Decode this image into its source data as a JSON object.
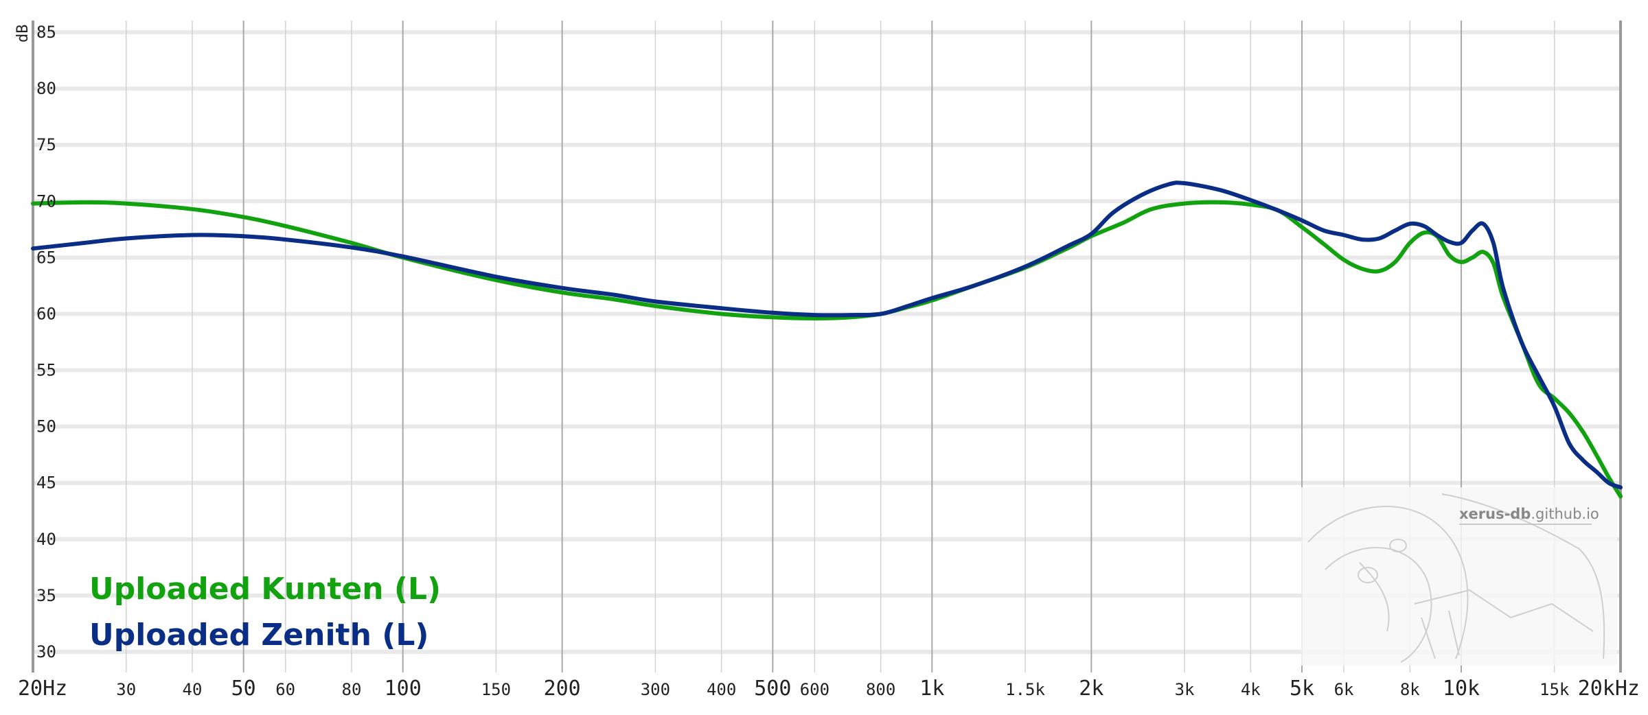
{
  "chart_data": {
    "type": "line",
    "ylabel": "dB",
    "ylim": [
      30,
      85
    ],
    "xlim": [
      20,
      20000
    ],
    "x_scale": "log",
    "y_ticks": [
      {
        "value": 85,
        "label": "85"
      },
      {
        "value": 80,
        "label": "80"
      },
      {
        "value": 75,
        "label": "75"
      },
      {
        "value": 70,
        "label": "70"
      },
      {
        "value": 65,
        "label": "65"
      },
      {
        "value": 60,
        "label": "60"
      },
      {
        "value": 55,
        "label": "55"
      },
      {
        "value": 50,
        "label": "50"
      },
      {
        "value": 45,
        "label": "45"
      },
      {
        "value": 40,
        "label": "40"
      },
      {
        "value": 35,
        "label": "35"
      },
      {
        "value": 30,
        "label": "30"
      }
    ],
    "x_ticks": [
      {
        "value": 20,
        "label": "20Hz",
        "major": true
      },
      {
        "value": 30,
        "label": "30",
        "major": false
      },
      {
        "value": 40,
        "label": "40",
        "major": false
      },
      {
        "value": 50,
        "label": "50",
        "major": true
      },
      {
        "value": 60,
        "label": "60",
        "major": false
      },
      {
        "value": 80,
        "label": "80",
        "major": false
      },
      {
        "value": 100,
        "label": "100",
        "major": true
      },
      {
        "value": 150,
        "label": "150",
        "major": false
      },
      {
        "value": 200,
        "label": "200",
        "major": true
      },
      {
        "value": 300,
        "label": "300",
        "major": false
      },
      {
        "value": 400,
        "label": "400",
        "major": false
      },
      {
        "value": 500,
        "label": "500",
        "major": true
      },
      {
        "value": 600,
        "label": "600",
        "major": false
      },
      {
        "value": 800,
        "label": "800",
        "major": false
      },
      {
        "value": 1000,
        "label": "1k",
        "major": true
      },
      {
        "value": 1500,
        "label": "1.5k",
        "major": false
      },
      {
        "value": 2000,
        "label": "2k",
        "major": true
      },
      {
        "value": 3000,
        "label": "3k",
        "major": false
      },
      {
        "value": 4000,
        "label": "4k",
        "major": false
      },
      {
        "value": 5000,
        "label": "5k",
        "major": true
      },
      {
        "value": 6000,
        "label": "6k",
        "major": false
      },
      {
        "value": 8000,
        "label": "8k",
        "major": false
      },
      {
        "value": 10000,
        "label": "10k",
        "major": true
      },
      {
        "value": 15000,
        "label": "15k",
        "major": false
      },
      {
        "value": 20000,
        "label": "20kHz",
        "major": true
      }
    ],
    "grid": true,
    "legend_position": "bottom-left",
    "series": [
      {
        "name": "Uploaded Kunten (L)",
        "color": "#12a20f",
        "points": [
          [
            20,
            69.8
          ],
          [
            25,
            69.9
          ],
          [
            30,
            69.8
          ],
          [
            40,
            69.3
          ],
          [
            50,
            68.6
          ],
          [
            60,
            67.8
          ],
          [
            80,
            66.3
          ],
          [
            100,
            65.0
          ],
          [
            150,
            63.0
          ],
          [
            200,
            61.9
          ],
          [
            250,
            61.3
          ],
          [
            300,
            60.7
          ],
          [
            400,
            60.0
          ],
          [
            500,
            59.7
          ],
          [
            600,
            59.6
          ],
          [
            700,
            59.7
          ],
          [
            800,
            60.0
          ],
          [
            900,
            60.6
          ],
          [
            1000,
            61.2
          ],
          [
            1200,
            62.5
          ],
          [
            1500,
            64.1
          ],
          [
            1800,
            65.8
          ],
          [
            2000,
            66.9
          ],
          [
            2300,
            68.1
          ],
          [
            2600,
            69.3
          ],
          [
            3000,
            69.8
          ],
          [
            3500,
            69.9
          ],
          [
            4000,
            69.7
          ],
          [
            4500,
            69.2
          ],
          [
            5000,
            67.7
          ],
          [
            5500,
            66.2
          ],
          [
            6000,
            64.8
          ],
          [
            6500,
            64.0
          ],
          [
            7000,
            63.8
          ],
          [
            7500,
            64.6
          ],
          [
            8000,
            66.3
          ],
          [
            8500,
            67.2
          ],
          [
            9000,
            66.9
          ],
          [
            9500,
            65.2
          ],
          [
            10000,
            64.6
          ],
          [
            10500,
            65.0
          ],
          [
            11000,
            65.5
          ],
          [
            11500,
            64.5
          ],
          [
            12000,
            61.5
          ],
          [
            13000,
            57.5
          ],
          [
            14000,
            53.8
          ],
          [
            15000,
            52.5
          ],
          [
            16000,
            51.2
          ],
          [
            17000,
            49.5
          ],
          [
            18000,
            47.5
          ],
          [
            19000,
            45.5
          ],
          [
            20000,
            43.8
          ]
        ]
      },
      {
        "name": "Uploaded Zenith (L)",
        "color": "#0a2d85",
        "points": [
          [
            20,
            65.8
          ],
          [
            25,
            66.3
          ],
          [
            30,
            66.7
          ],
          [
            40,
            67.0
          ],
          [
            50,
            66.9
          ],
          [
            60,
            66.6
          ],
          [
            80,
            65.9
          ],
          [
            100,
            65.1
          ],
          [
            150,
            63.3
          ],
          [
            200,
            62.3
          ],
          [
            250,
            61.7
          ],
          [
            300,
            61.1
          ],
          [
            400,
            60.5
          ],
          [
            500,
            60.1
          ],
          [
            600,
            59.9
          ],
          [
            700,
            59.9
          ],
          [
            800,
            60.0
          ],
          [
            900,
            60.7
          ],
          [
            1000,
            61.4
          ],
          [
            1200,
            62.5
          ],
          [
            1500,
            64.2
          ],
          [
            1800,
            66.0
          ],
          [
            2000,
            67.1
          ],
          [
            2200,
            69.0
          ],
          [
            2500,
            70.6
          ],
          [
            2800,
            71.5
          ],
          [
            3000,
            71.6
          ],
          [
            3500,
            71.0
          ],
          [
            4000,
            70.1
          ],
          [
            4500,
            69.2
          ],
          [
            5000,
            68.3
          ],
          [
            5500,
            67.4
          ],
          [
            6000,
            67.0
          ],
          [
            6500,
            66.6
          ],
          [
            7000,
            66.7
          ],
          [
            7500,
            67.4
          ],
          [
            8000,
            68.0
          ],
          [
            8500,
            67.8
          ],
          [
            9000,
            67.0
          ],
          [
            9500,
            66.4
          ],
          [
            10000,
            66.3
          ],
          [
            10500,
            67.4
          ],
          [
            11000,
            68.0
          ],
          [
            11500,
            66.3
          ],
          [
            12000,
            62.3
          ],
          [
            13000,
            57.5
          ],
          [
            14000,
            54.5
          ],
          [
            15000,
            51.8
          ],
          [
            16000,
            48.5
          ],
          [
            17000,
            47.0
          ],
          [
            18000,
            46.0
          ],
          [
            19000,
            45.0
          ],
          [
            20000,
            44.6
          ]
        ]
      }
    ],
    "watermark_text": "xerus-db.github.io"
  }
}
